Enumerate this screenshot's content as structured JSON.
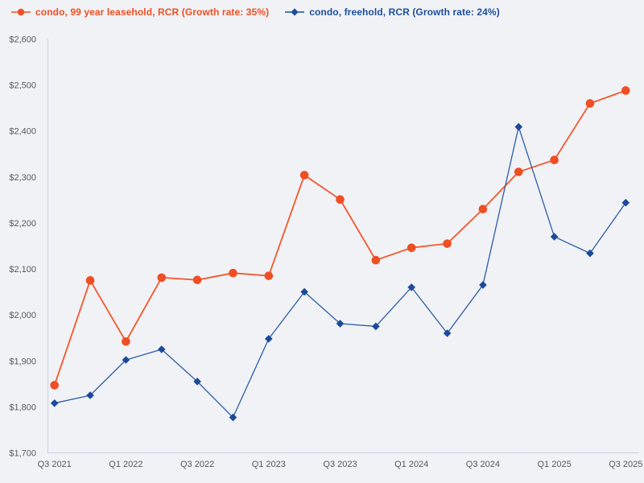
{
  "page": {
    "background": "#f0f2f5"
  },
  "legend": {
    "items": [
      {
        "label": "condo, 99 year leasehold, RCR (Growth rate: 35%)",
        "color": "#f04e23",
        "marker": "circle"
      },
      {
        "label": "condo, freehold, RCR (Growth rate: 24%)",
        "color": "#1d4f9e",
        "marker": "diamond"
      }
    ]
  },
  "chart_data": {
    "type": "line",
    "title": "",
    "xlabel": "",
    "ylabel": "",
    "x": [
      "Q3 2021",
      "Q4 2021",
      "Q1 2022",
      "Q2 2022",
      "Q3 2022",
      "Q4 2022",
      "Q1 2023",
      "Q2 2023",
      "Q3 2023",
      "Q4 2023",
      "Q1 2024",
      "Q2 2024",
      "Q3 2024",
      "Q4 2024",
      "Q1 2025",
      "Q2 2025",
      "Q3 2025"
    ],
    "x_ticks_shown": [
      "Q3 2021",
      "Q1 2022",
      "Q3 2022",
      "Q1 2023",
      "Q3 2023",
      "Q1 2024",
      "Q3 2024",
      "Q1 2025",
      "Q3 2025"
    ],
    "x_tick_step": 2,
    "y_ticks": [
      1700,
      1800,
      1900,
      2000,
      2100,
      2200,
      2300,
      2400,
      2500,
      2600
    ],
    "y_tick_prefix": "$",
    "ylim": [
      1700,
      2600
    ],
    "grid": false,
    "legend_position": "top-left",
    "axis_color": "#c5cfe0",
    "tick_label_color": "#595959",
    "series": [
      {
        "name": "condo, 99 year leasehold, RCR (Growth rate: 35%)",
        "marker": "circle",
        "color": "#f04e23",
        "line_color": "#f4562b",
        "values": [
          1847,
          2075,
          1942,
          2081,
          2076,
          2091,
          2085,
          2304,
          2251,
          2119,
          2146,
          2155,
          2230,
          2311,
          2337,
          2460,
          2488
        ]
      },
      {
        "name": "condo, freehold, RCR (Growth rate: 24%)",
        "marker": "diamond",
        "color": "#1c4a9a",
        "line_color": "#2e5ca8",
        "values": [
          1808,
          1825,
          1902,
          1925,
          1855,
          1777,
          1948,
          2050,
          1981,
          1975,
          2060,
          1960,
          2065,
          2409,
          2170,
          2134,
          2244
        ]
      }
    ]
  }
}
